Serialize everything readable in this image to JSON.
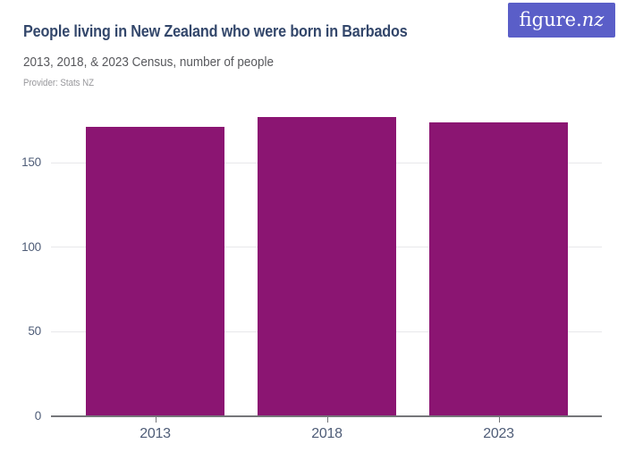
{
  "page": {
    "background": "#ffffff"
  },
  "header": {
    "title": "People living in New Zealand who were born in Barbados",
    "subtitle": "2013, 2018, & 2023 Census, number of people",
    "provider": "Provider: Stats NZ",
    "title_color": "#33476b",
    "subtitle_color": "#58595d",
    "provider_color": "#97979b",
    "logo": {
      "text_regular": "figure.",
      "text_italic": "nz",
      "bg_color": "#5a5ec8",
      "text_color": "#ffffff"
    }
  },
  "chart_data": {
    "type": "bar",
    "title": "People living in New Zealand who were born in Barbados",
    "subtitle": "2013, 2018, & 2023 Census, number of people",
    "categories": [
      "2013",
      "2018",
      "2023"
    ],
    "values": [
      171,
      177,
      174
    ],
    "series_name": "Number of people",
    "xlabel": "",
    "ylabel": "",
    "ylim": [
      0,
      185
    ],
    "yticks": [
      0,
      50,
      100,
      150
    ],
    "grid": "horizontal",
    "legend": "none",
    "bar_color": "#8b1572",
    "axis_label_color": "#4e5c77",
    "gridline_color": "#e8e8eb",
    "baseline_color": "#75767a"
  }
}
